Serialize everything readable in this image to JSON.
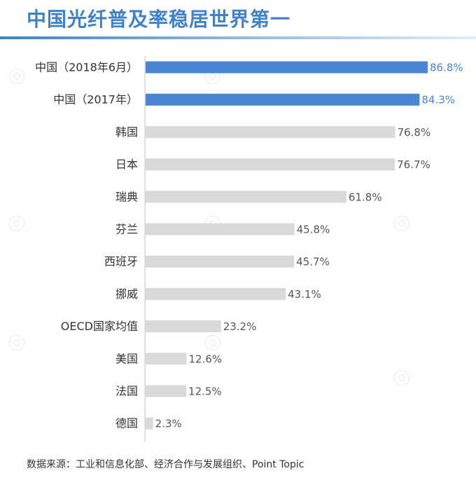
{
  "title": "中国光纤普及率稳居世界第一",
  "source": "数据来源：工业和信息化部、经济合作与发展组织、Point Topic",
  "colors": {
    "title": "#3f82c9",
    "highlight": "#4a86d4",
    "gray": "#d9d9d9",
    "highlight_label": "#4a86d4",
    "gray_label": "#555555"
  },
  "chart_data": {
    "type": "bar",
    "orientation": "horizontal",
    "categories": [
      "中国（2018年6月）",
      "中国（2017年）",
      "韩国",
      "日本",
      "瑞典",
      "芬兰",
      "西班牙",
      "挪威",
      "OECD国家均值",
      "美国",
      "法国",
      "德国"
    ],
    "values": [
      86.8,
      84.3,
      76.8,
      76.7,
      61.8,
      45.8,
      45.7,
      43.1,
      23.2,
      12.6,
      12.5,
      2.3
    ],
    "value_labels": [
      "86.8%",
      "84.3%",
      "76.8%",
      "76.7%",
      "61.8%",
      "45.8%",
      "45.7%",
      "43.1%",
      "23.2%",
      "12.6%",
      "12.5%",
      "2.3%"
    ],
    "highlighted": [
      true,
      true,
      false,
      false,
      false,
      false,
      false,
      false,
      false,
      false,
      false,
      false
    ],
    "unit": "%",
    "xlim": [
      0,
      86.8
    ],
    "grid": false
  }
}
